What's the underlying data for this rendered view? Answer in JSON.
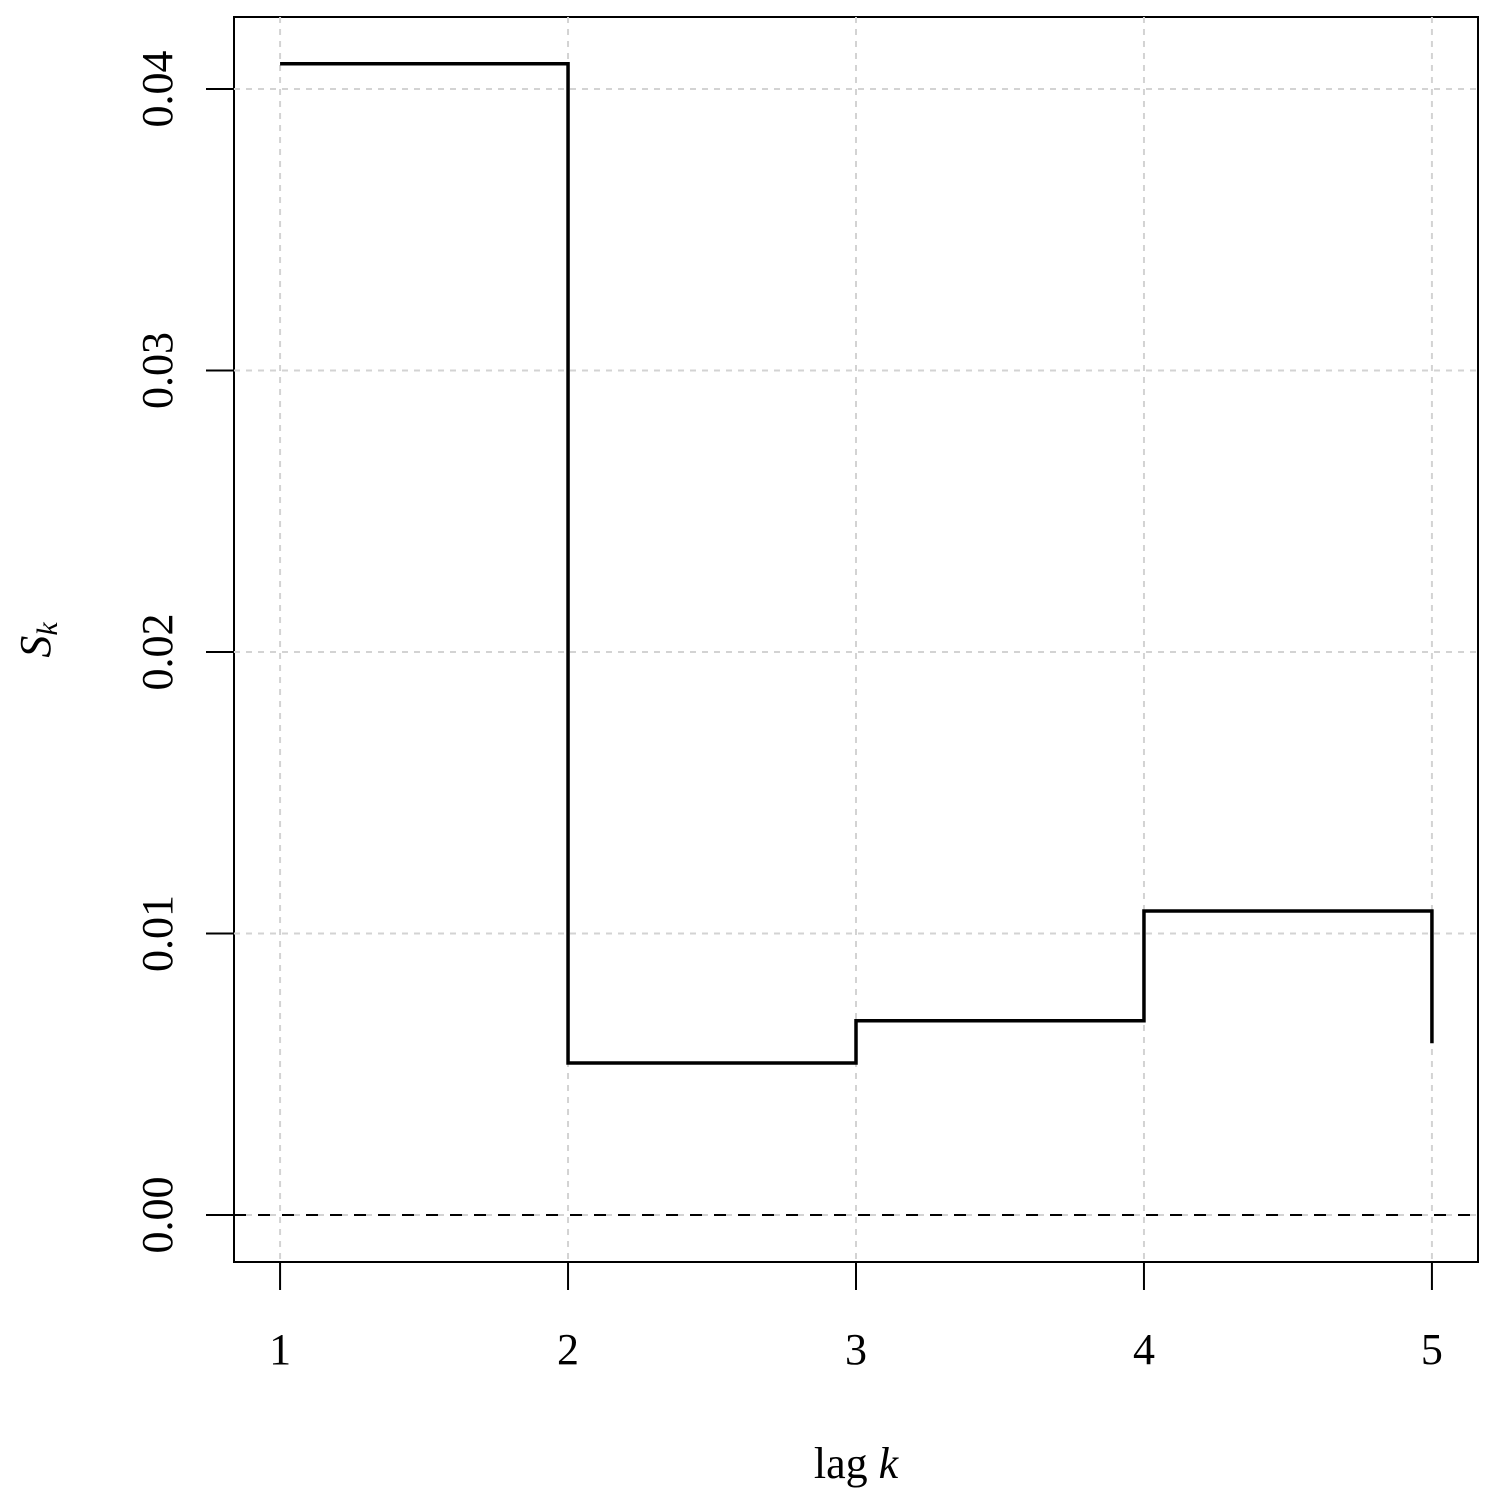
{
  "chart_data": {
    "type": "step",
    "x": [
      1,
      2,
      3,
      4,
      5
    ],
    "values": [
      0.0409,
      0.0054,
      0.0069,
      0.0108,
      0.0061
    ],
    "color": "#000000",
    "xlim": [
      0.84,
      5.16
    ],
    "ylim": [
      -0.00167,
      0.04256
    ],
    "xticks": [
      1,
      2,
      3,
      4,
      5
    ],
    "yticks": [
      {
        "value": 0,
        "label": "0.00"
      },
      0.01,
      0.02,
      0.03,
      0.04
    ],
    "grid": true,
    "hline": 0,
    "xlabel": [
      "lag",
      "k"
    ],
    "ylabel": [
      "S",
      "k"
    ]
  }
}
